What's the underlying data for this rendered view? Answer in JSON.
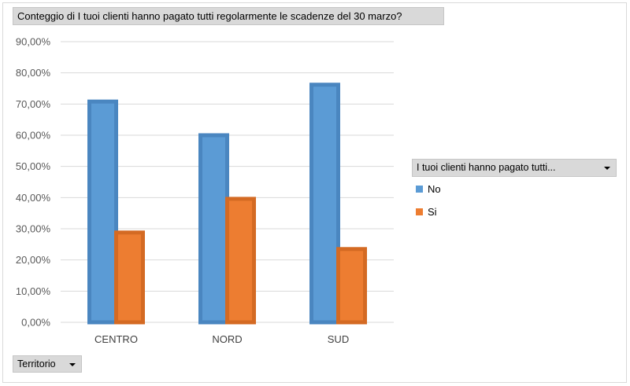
{
  "title_field": {
    "label": "Conteggio di I tuoi clienti hanno pagato tutti regolarmente le scadenze  del 30 marzo?"
  },
  "legend_field": {
    "label": "I tuoi clienti hanno pagato tutti..."
  },
  "axis_field": {
    "label": "Territorio"
  },
  "legend": [
    {
      "label": "No",
      "color": "#5b9bd5"
    },
    {
      "label": "Si",
      "color": "#ed7d31"
    }
  ],
  "chart_data": {
    "type": "bar",
    "categories": [
      "CENTRO",
      "NORD",
      "SUD"
    ],
    "series": [
      {
        "name": "No",
        "values": [
          70.8,
          60.0,
          76.2
        ],
        "color": "#5b9bd5",
        "edge": "#4a86c0"
      },
      {
        "name": "Si",
        "values": [
          28.8,
          39.6,
          23.5
        ],
        "color": "#ed7d31",
        "edge": "#d46a23"
      }
    ],
    "yticks": [
      "0,00%",
      "10,00%",
      "20,00%",
      "30,00%",
      "40,00%",
      "50,00%",
      "60,00%",
      "70,00%",
      "80,00%",
      "90,00%"
    ],
    "ylim": [
      0,
      90
    ],
    "grid": true,
    "legend_position": "right"
  }
}
